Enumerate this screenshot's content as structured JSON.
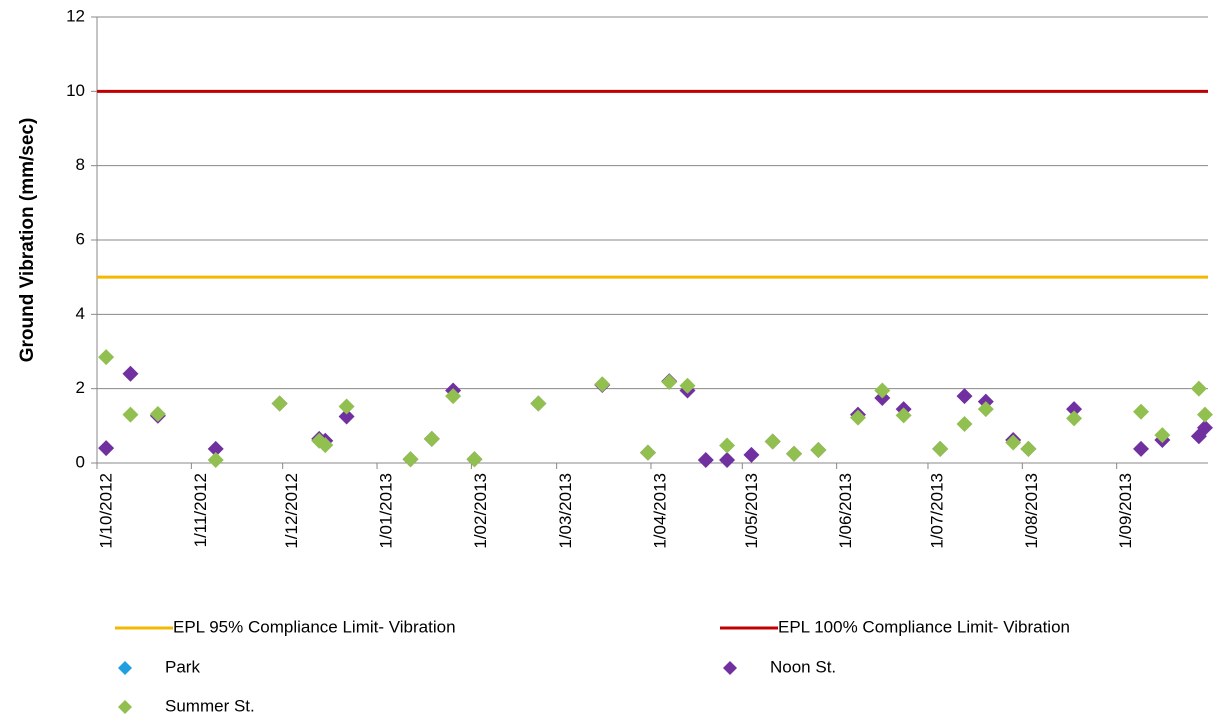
{
  "chart_data": {
    "type": "scatter",
    "y_label": "Ground Vibration (mm/sec)",
    "ylim": [
      0,
      12
    ],
    "yticks": [
      0,
      2,
      4,
      6,
      8,
      10,
      12
    ],
    "grid": true,
    "xlim": [
      "2012-10-01",
      "2013-10-01"
    ],
    "xticks": [
      {
        "value": "2012-10-01",
        "label": "1/10/2012"
      },
      {
        "value": "2012-11-01",
        "label": "1/11/2012"
      },
      {
        "value": "2012-12-01",
        "label": "1/12/2012"
      },
      {
        "value": "2013-01-01",
        "label": "1/01/2013"
      },
      {
        "value": "2013-02-01",
        "label": "1/02/2013"
      },
      {
        "value": "2013-03-01",
        "label": "1/03/2013"
      },
      {
        "value": "2013-04-01",
        "label": "1/04/2013"
      },
      {
        "value": "2013-05-01",
        "label": "1/05/2013"
      },
      {
        "value": "2013-06-01",
        "label": "1/06/2013"
      },
      {
        "value": "2013-07-01",
        "label": "1/07/2013"
      },
      {
        "value": "2013-08-01",
        "label": "1/08/2013"
      },
      {
        "value": "2013-09-01",
        "label": "1/09/2013"
      }
    ],
    "series": [
      {
        "name": "EPL 95% Compliance Limit- Vibration",
        "kind": "line",
        "color": "#f5b800",
        "x": [
          "2012-10-01",
          "2013-10-01"
        ],
        "values": [
          5,
          5
        ]
      },
      {
        "name": "EPL 100% Compliance Limit- Vibration",
        "kind": "line",
        "color": "#c00000",
        "x": [
          "2012-10-01",
          "2013-10-01"
        ],
        "values": [
          10,
          10
        ]
      },
      {
        "name": "Park",
        "kind": "marker",
        "color": "#1f9ee0",
        "x": [],
        "values": []
      },
      {
        "name": "Noon St.",
        "kind": "marker",
        "color": "#7030a0",
        "x": [
          "2012-10-04",
          "2012-10-12",
          "2012-10-21",
          "2012-11-09",
          "2012-11-30",
          "2012-12-13",
          "2012-12-15",
          "2012-12-22",
          "2013-01-12",
          "2013-01-19",
          "2013-01-26",
          "2013-02-02",
          "2013-02-23",
          "2013-03-16",
          "2013-03-31",
          "2013-04-07",
          "2013-04-13",
          "2013-04-19",
          "2013-04-26",
          "2013-05-04",
          "2013-05-11",
          "2013-05-18",
          "2013-05-26",
          "2013-06-08",
          "2013-06-16",
          "2013-06-23",
          "2013-07-05",
          "2013-07-13",
          "2013-07-20",
          "2013-07-29",
          "2013-08-03",
          "2013-08-18",
          "2013-09-09",
          "2013-09-16",
          "2013-09-28",
          "2013-09-30"
        ],
        "values": [
          0.4,
          2.4,
          1.27,
          0.38,
          1.6,
          0.65,
          0.6,
          1.25,
          0.1,
          0.65,
          1.95,
          0.1,
          1.6,
          2.1,
          0.28,
          2.2,
          1.95,
          0.08,
          0.08,
          0.22,
          0.58,
          0.25,
          0.35,
          1.3,
          1.75,
          1.45,
          0.38,
          1.8,
          1.65,
          0.62,
          0.38,
          1.45,
          0.38,
          0.62,
          0.72,
          0.95
        ]
      },
      {
        "name": "Summer St.",
        "kind": "marker",
        "color": "#92c050",
        "x": [
          "2012-10-04",
          "2012-10-12",
          "2012-10-21",
          "2012-11-09",
          "2012-11-30",
          "2012-12-13",
          "2012-12-15",
          "2012-12-22",
          "2013-01-12",
          "2013-01-19",
          "2013-01-26",
          "2013-02-02",
          "2013-02-23",
          "2013-03-16",
          "2013-03-31",
          "2013-04-07",
          "2013-04-13",
          "2013-04-26",
          "2013-05-11",
          "2013-05-18",
          "2013-05-26",
          "2013-06-08",
          "2013-06-16",
          "2013-06-23",
          "2013-07-05",
          "2013-07-13",
          "2013-07-20",
          "2013-07-29",
          "2013-08-03",
          "2013-08-18",
          "2013-09-09",
          "2013-09-16",
          "2013-09-28",
          "2013-09-30"
        ],
        "values": [
          2.85,
          1.3,
          1.32,
          0.08,
          1.6,
          0.6,
          0.48,
          1.52,
          0.1,
          0.65,
          1.8,
          0.1,
          1.6,
          2.12,
          0.28,
          2.18,
          2.08,
          0.47,
          0.58,
          0.25,
          0.35,
          1.22,
          1.95,
          1.28,
          0.38,
          1.05,
          1.45,
          0.55,
          0.38,
          1.2,
          1.38,
          0.75,
          2.0,
          1.3
        ]
      }
    ]
  }
}
